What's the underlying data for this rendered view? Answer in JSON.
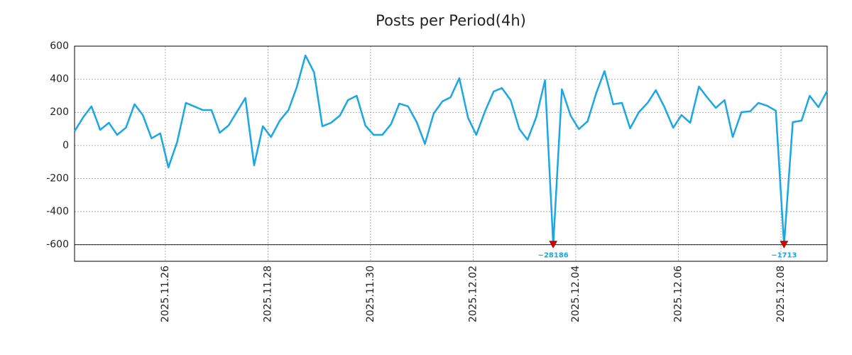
{
  "chart_data": {
    "type": "line",
    "title": "Posts per Period(4h)",
    "x": [
      24.23,
      24.4,
      24.56,
      24.73,
      24.9,
      25.06,
      25.23,
      25.4,
      25.56,
      25.73,
      25.9,
      26.06,
      26.23,
      26.4,
      26.56,
      26.73,
      26.9,
      27.06,
      27.23,
      27.4,
      27.56,
      27.73,
      27.9,
      28.06,
      28.23,
      28.4,
      28.56,
      28.73,
      28.9,
      29.06,
      29.23,
      29.4,
      29.56,
      29.73,
      29.9,
      30.06,
      30.23,
      30.4,
      30.56,
      30.73,
      30.9,
      31.06,
      31.23,
      31.4,
      31.56,
      31.73,
      31.9,
      32.06,
      32.23,
      32.4,
      32.56,
      32.73,
      32.9,
      33.06,
      33.23,
      33.4,
      33.56,
      33.73,
      33.9,
      34.06,
      34.23,
      34.4,
      34.56,
      34.73,
      34.9,
      35.06,
      35.23,
      35.4,
      35.56,
      35.73,
      35.9,
      36.06,
      36.23,
      36.4,
      36.56,
      36.73,
      36.9,
      37.06,
      37.23,
      37.4,
      37.56,
      37.73,
      37.9,
      38.06,
      38.23,
      38.4,
      38.56,
      38.73,
      38.9
    ],
    "series": [
      {
        "name": "Posts",
        "color": "#1aa7e8",
        "values": [
          86,
          171,
          236,
          94,
          137,
          64,
          107,
          249,
          184,
          43,
          73,
          -133,
          21,
          257,
          236,
          214,
          214,
          77,
          120,
          206,
          287,
          -120,
          116,
          51,
          150,
          214,
          351,
          544,
          441,
          116,
          137,
          180,
          274,
          300,
          120,
          64,
          64,
          129,
          253,
          236,
          141,
          9,
          193,
          266,
          291,
          407,
          167,
          64,
          206,
          326,
          347,
          274,
          99,
          34,
          171,
          394,
          -28186,
          339,
          180,
          99,
          146,
          317,
          450,
          249,
          257,
          103,
          201,
          257,
          334,
          231,
          107,
          184,
          137,
          356,
          291,
          227,
          274,
          51,
          201,
          206,
          257,
          240,
          210,
          -1713,
          141,
          150,
          300,
          231,
          330
        ],
        "value_labels": [
          null,
          null,
          null,
          null,
          null,
          null,
          null,
          null,
          null,
          null,
          null,
          null,
          null,
          null,
          null,
          null,
          null,
          null,
          null,
          null,
          null,
          null,
          null,
          null,
          null,
          null,
          null,
          null,
          null,
          null,
          null,
          null,
          null,
          null,
          null,
          null,
          null,
          null,
          null,
          null,
          null,
          null,
          null,
          null,
          null,
          null,
          null,
          null,
          null,
          null,
          null,
          null,
          null,
          null,
          null,
          null,
          "−28186",
          null,
          null,
          null,
          null,
          null,
          null,
          null,
          null,
          null,
          null,
          null,
          null,
          null,
          null,
          null,
          null,
          null,
          null,
          null,
          null,
          null,
          null,
          null,
          null,
          null,
          null,
          "−1713",
          null,
          null,
          null,
          null,
          null
        ]
      }
    ],
    "xlim": [
      24.23,
      38.9
    ],
    "xticks": [
      {
        "value": 26,
        "label": "2025.11.26"
      },
      {
        "value": 28,
        "label": "2025.11.28"
      },
      {
        "value": 30,
        "label": "2025.11.30"
      },
      {
        "value": 32,
        "label": "2025.12.02"
      },
      {
        "value": 34,
        "label": "2025.12.04"
      },
      {
        "value": 36,
        "label": "2025.12.06"
      },
      {
        "value": 38,
        "label": "2025.12.08"
      }
    ],
    "ylim": [
      -700,
      600
    ],
    "yticks": [
      -600,
      -400,
      -200,
      0,
      200,
      400,
      600
    ],
    "grid": true
  }
}
